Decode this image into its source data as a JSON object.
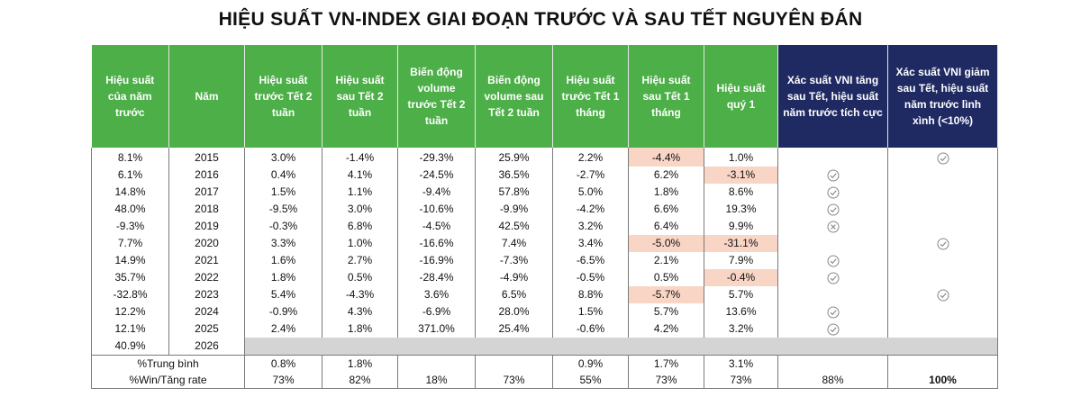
{
  "title": "HIỆU SUẤT VN-INDEX GIAI ĐOẠN TRƯỚC VÀ SAU TẾT NGUYÊN ĐÁN",
  "headers": [
    "Hiệu suất của năm trước",
    "Năm",
    "Hiệu suất trước Tết 2 tuần",
    "Hiệu suất sau Tết 2 tuần",
    "Biến động volume trước Tết 2 tuần",
    "Biến động volume sau Tết 2 tuần",
    "Hiệu suất trước Tết 1 tháng",
    "Hiệu suất sau Tết 1 tháng",
    "Hiệu suất quý 1",
    "Xác suất VNI tăng sau Tết, hiệu suất năm trước tích cực",
    "Xác suất  VNI giảm sau Tết, hiệu suất năm trước lình xình (<10%)"
  ],
  "rows": [
    {
      "prev": "8.1%",
      "year": "2015",
      "pre2w": "3.0%",
      "post2w": "-1.4%",
      "volpre": "-29.3%",
      "volpost": "25.9%",
      "pre1m": "2.2%",
      "post1m": "-4.4%",
      "q1": "1.0%",
      "up": false,
      "down": true
    },
    {
      "prev": "6.1%",
      "year": "2016",
      "pre2w": "0.4%",
      "post2w": "4.1%",
      "volpre": "-24.5%",
      "volpost": "36.5%",
      "pre1m": "-2.7%",
      "post1m": "6.2%",
      "q1": "-3.1%",
      "up": true,
      "down": false
    },
    {
      "prev": "14.8%",
      "year": "2017",
      "pre2w": "1.5%",
      "post2w": "1.1%",
      "volpre": "-9.4%",
      "volpost": "57.8%",
      "pre1m": "5.0%",
      "post1m": "1.8%",
      "q1": "8.6%",
      "up": true,
      "down": false
    },
    {
      "prev": "48.0%",
      "year": "2018",
      "pre2w": "-9.5%",
      "post2w": "3.0%",
      "volpre": "-10.6%",
      "volpost": "-9.9%",
      "pre1m": "-4.2%",
      "post1m": "6.6%",
      "q1": "19.3%",
      "up": true,
      "down": false
    },
    {
      "prev": "-9.3%",
      "year": "2019",
      "pre2w": "-0.3%",
      "post2w": "6.8%",
      "volpre": "-4.5%",
      "volpost": "42.5%",
      "pre1m": "3.2%",
      "post1m": "6.4%",
      "q1": "9.9%",
      "upx": true,
      "down": false
    },
    {
      "prev": "7.7%",
      "year": "2020",
      "pre2w": "3.3%",
      "post2w": "1.0%",
      "volpre": "-16.6%",
      "volpost": "7.4%",
      "pre1m": "3.4%",
      "post1m": "-5.0%",
      "q1": "-31.1%",
      "up": false,
      "down": true
    },
    {
      "prev": "14.9%",
      "year": "2021",
      "pre2w": "1.6%",
      "post2w": "2.7%",
      "volpre": "-16.9%",
      "volpost": "-7.3%",
      "pre1m": "-6.5%",
      "post1m": "2.1%",
      "q1": "7.9%",
      "up": true,
      "down": false
    },
    {
      "prev": "35.7%",
      "year": "2022",
      "pre2w": "1.8%",
      "post2w": "0.5%",
      "volpre": "-28.4%",
      "volpost": "-4.9%",
      "pre1m": "-0.5%",
      "post1m": "0.5%",
      "q1": "-0.4%",
      "up": true,
      "down": false
    },
    {
      "prev": "-32.8%",
      "year": "2023",
      "pre2w": "5.4%",
      "post2w": "-4.3%",
      "volpre": "3.6%",
      "volpost": "6.5%",
      "pre1m": "8.8%",
      "post1m": "-5.7%",
      "q1": "5.7%",
      "up": false,
      "down": true
    },
    {
      "prev": "12.2%",
      "year": "2024",
      "pre2w": "-0.9%",
      "post2w": "4.3%",
      "volpre": "-6.9%",
      "volpost": "28.0%",
      "pre1m": "1.5%",
      "post1m": "5.7%",
      "q1": "13.6%",
      "up": true,
      "down": false
    },
    {
      "prev": "12.1%",
      "year": "2025",
      "pre2w": "2.4%",
      "post2w": "1.8%",
      "volpre": "371.0%",
      "volpost": "25.4%",
      "pre1m": "-0.6%",
      "post1m": "4.2%",
      "q1": "3.2%",
      "up": true,
      "down": false
    }
  ],
  "row2026": {
    "prev": "40.9%",
    "year": "2026"
  },
  "avg": {
    "label": "%Trung bình",
    "pre2w": "0.8%",
    "post2w": "1.8%",
    "pre1m": "0.9%",
    "post1m": "1.7%",
    "q1": "3.1%"
  },
  "win": {
    "label": "%Win/Tăng rate",
    "pre2w": "73%",
    "post2w": "82%",
    "volpre": "18%",
    "volpost": "73%",
    "pre1m": "55%",
    "post1m": "73%",
    "q1": "73%",
    "up": "88%",
    "down": "100%"
  },
  "colors": {
    "green": "#4caf47",
    "navy": "#1f2a63",
    "negative_highlight": "#f8d5c4",
    "na_gray": "#d4d4d4"
  },
  "icons": {
    "check": "check-circle-icon",
    "cross": "x-circle-icon"
  }
}
